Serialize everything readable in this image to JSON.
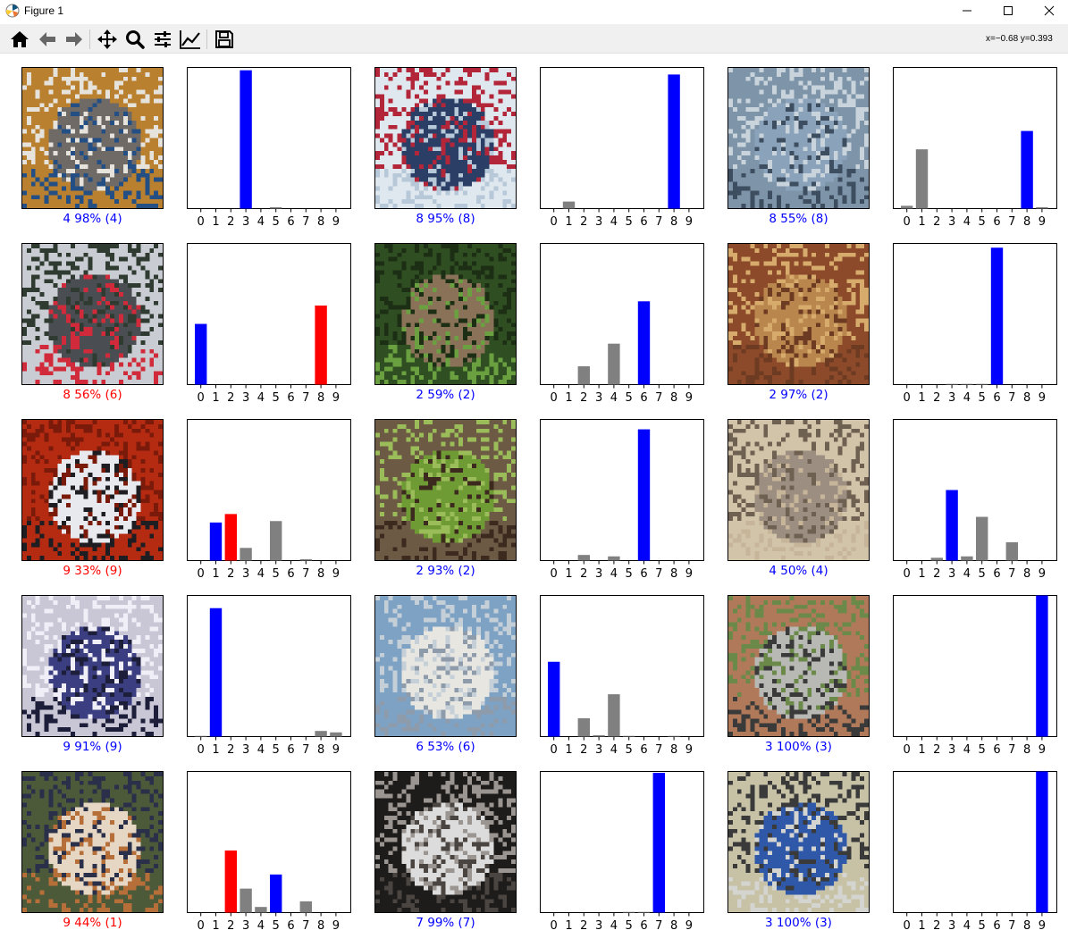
{
  "window": {
    "title": "Figure 1",
    "icon": "matplotlib-icon"
  },
  "window_controls": [
    "minimize-icon",
    "maximize-icon",
    "close-icon"
  ],
  "toolbar": {
    "tools": [
      {
        "name": "home-icon"
      },
      {
        "name": "back-arrow-icon"
      },
      {
        "name": "forward-arrow-icon"
      },
      {
        "name": "pan-icon"
      },
      {
        "name": "zoom-icon"
      },
      {
        "name": "subplots-config-icon"
      },
      {
        "name": "edit-axis-icon"
      },
      {
        "name": "save-icon"
      }
    ],
    "coords": "x=−0.68 y=0.393"
  },
  "colors": {
    "correct": "#0000ff",
    "wrong": "#ff0000",
    "other": "#808080"
  },
  "chart_data": {
    "type": "bar",
    "layout": "5 rows × 3 image/prediction pairs",
    "categories": [
      "0",
      "1",
      "2",
      "3",
      "4",
      "5",
      "6",
      "7",
      "8",
      "9"
    ],
    "ylim": [
      0,
      1
    ],
    "panels": [
      {
        "image": "cat",
        "caption": "4 98% (4)",
        "correct": true,
        "values": [
          0,
          0,
          0,
          0.98,
          0,
          0.01,
          0,
          0,
          0,
          0
        ],
        "pred": 3,
        "true": 3
      },
      {
        "image": "ship",
        "caption": "8 95% (8)",
        "correct": true,
        "values": [
          0,
          0.05,
          0,
          0,
          0,
          0,
          0,
          0,
          0.95,
          0
        ],
        "pred": 8,
        "true": 8
      },
      {
        "image": "ship2",
        "caption": "8 55% (8)",
        "correct": true,
        "values": [
          0.02,
          0.42,
          0,
          0,
          0,
          0,
          0,
          0,
          0.55,
          0.01
        ],
        "pred": 8,
        "true": 8
      },
      {
        "image": "airplane-book",
        "caption": "8 56% (6)",
        "correct": false,
        "values": [
          0.43,
          0,
          0,
          0,
          0,
          0,
          0,
          0,
          0.56,
          0
        ],
        "pred": 8,
        "true": 0
      },
      {
        "image": "frog",
        "caption": "2 59% (2)",
        "correct": true,
        "values": [
          0,
          0,
          0.13,
          0,
          0.29,
          0,
          0.59,
          0,
          0,
          0
        ],
        "pred": 6,
        "true": 6
      },
      {
        "image": "frog2",
        "caption": "2 97% (2)",
        "correct": true,
        "values": [
          0,
          0,
          0,
          0.005,
          0.005,
          0.005,
          0.97,
          0,
          0,
          0
        ],
        "pred": 6,
        "true": 6
      },
      {
        "image": "car",
        "caption": "9 33% (9)",
        "correct": false,
        "values": [
          0,
          0.27,
          0.33,
          0.09,
          0,
          0.28,
          0,
          0.01,
          0,
          0
        ],
        "pred": 2,
        "true": 1
      },
      {
        "image": "frog3",
        "caption": "2 93% (2)",
        "correct": true,
        "values": [
          0,
          0,
          0.04,
          0,
          0.03,
          0,
          0.93,
          0,
          0,
          0
        ],
        "pred": 6,
        "true": 6
      },
      {
        "image": "cat2",
        "caption": "4 50% (4)",
        "correct": true,
        "values": [
          0,
          0,
          0.02,
          0.5,
          0.03,
          0.31,
          0,
          0.13,
          0,
          0
        ],
        "pred": 3,
        "true": 3
      },
      {
        "image": "car2",
        "caption": "9 91% (9)",
        "correct": true,
        "values": [
          0.005,
          0.91,
          0,
          0,
          0,
          0,
          0,
          0,
          0.04,
          0.03
        ],
        "pred": 1,
        "true": 1
      },
      {
        "image": "airplane",
        "caption": "6 53% (6)",
        "correct": true,
        "values": [
          0.53,
          0,
          0.13,
          0.01,
          0.3,
          0.005,
          0,
          0,
          0.005,
          0
        ],
        "pred": 0,
        "true": 0
      },
      {
        "image": "truck",
        "caption": "3 100% (3)",
        "correct": true,
        "values": [
          0,
          0,
          0,
          0,
          0,
          0,
          0,
          0,
          0,
          1.0
        ],
        "pred": 9,
        "true": 9
      },
      {
        "image": "dog",
        "caption": "9 44% (1)",
        "correct": false,
        "values": [
          0,
          0,
          0.44,
          0.17,
          0.04,
          0.27,
          0,
          0.08,
          0,
          0
        ],
        "pred": 2,
        "true": 5
      },
      {
        "image": "horse",
        "caption": "7 99% (7)",
        "correct": true,
        "values": [
          0,
          0,
          0,
          0,
          0,
          0.005,
          0.005,
          0.99,
          0,
          0
        ],
        "pred": 7,
        "true": 7
      },
      {
        "image": "truck2",
        "caption": "3 100% (3)",
        "correct": true,
        "values": [
          0,
          0,
          0,
          0,
          0,
          0,
          0,
          0,
          0,
          1.0
        ],
        "pred": 9,
        "true": 9
      }
    ]
  }
}
